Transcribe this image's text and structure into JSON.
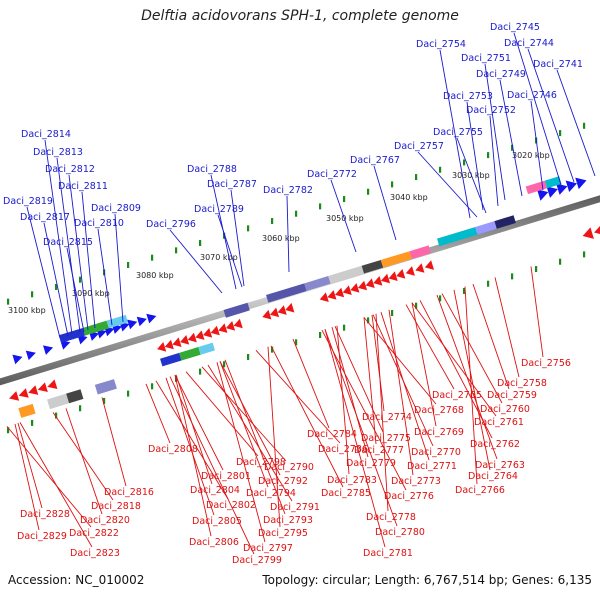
{
  "title": "Delftia acidovorans SPH-1, complete genome",
  "footer": {
    "accession": "Accession: NC_010002",
    "genome_info": "Topology: circular; Length: 6,767,514 bp; Genes: 6,135"
  },
  "ruler_labels": [
    "3020 kbp",
    "3030 kbp",
    "3040 kbp",
    "3050 kbp",
    "3060 kbp",
    "3070 kbp",
    "3080 kbp",
    "3090 kbp",
    "3100 kbp"
  ],
  "upper_gene_labels": [
    "Daci_2745",
    "Daci_2744",
    "Daci_2741",
    "Daci_2754",
    "Daci_2751",
    "Daci_2749",
    "Daci_2746",
    "Daci_2753",
    "Daci_2752",
    "Daci_2755",
    "Daci_2757",
    "Daci_2767",
    "Daci_2772",
    "Daci_2782",
    "Daci_2788",
    "Daci_2787",
    "Daci_2789",
    "Daci_2796",
    "Daci_2814",
    "Daci_2813",
    "Daci_2812",
    "Daci_2811",
    "Daci_2819",
    "Daci_2809",
    "Daci_2817",
    "Daci_2810",
    "Daci_2815"
  ],
  "lower_gene_labels": [
    "Daci_2756",
    "Daci_2758",
    "Daci_2759",
    "Daci_2765",
    "Daci_2760",
    "Daci_2768",
    "Daci_2761",
    "Daci_2774",
    "Daci_2769",
    "Daci_2784",
    "Daci_2775",
    "Daci_2770",
    "Daci_2762",
    "Daci_2786",
    "Daci_2777",
    "Daci_2808",
    "Daci_2779",
    "Daci_2771",
    "Daci_2763",
    "Daci_2798",
    "Daci_2790",
    "Daci_2783",
    "Daci_2773",
    "Daci_2764",
    "Daci_2801",
    "Daci_2792",
    "Daci_2785",
    "Daci_2776",
    "Daci_2766",
    "Daci_2816",
    "Daci_2804",
    "Daci_2794",
    "Daci_2818",
    "Daci_2802",
    "Daci_2791",
    "Daci_2778",
    "Daci_2828",
    "Daci_2820",
    "Daci_2805",
    "Daci_2793",
    "Daci_2780",
    "Daci_2822",
    "Daci_2795",
    "Daci_2829",
    "Daci_2806",
    "Daci_2797",
    "Daci_2781",
    "Daci_2823",
    "Daci_2799"
  ],
  "colors": {
    "upper_label": "#1a1acc",
    "lower_label": "#dd1111",
    "forward_arrow": "#1515ee",
    "reverse_arrow": "#ee1515",
    "tick": "#1a8a1a",
    "backbone": "#909090"
  }
}
